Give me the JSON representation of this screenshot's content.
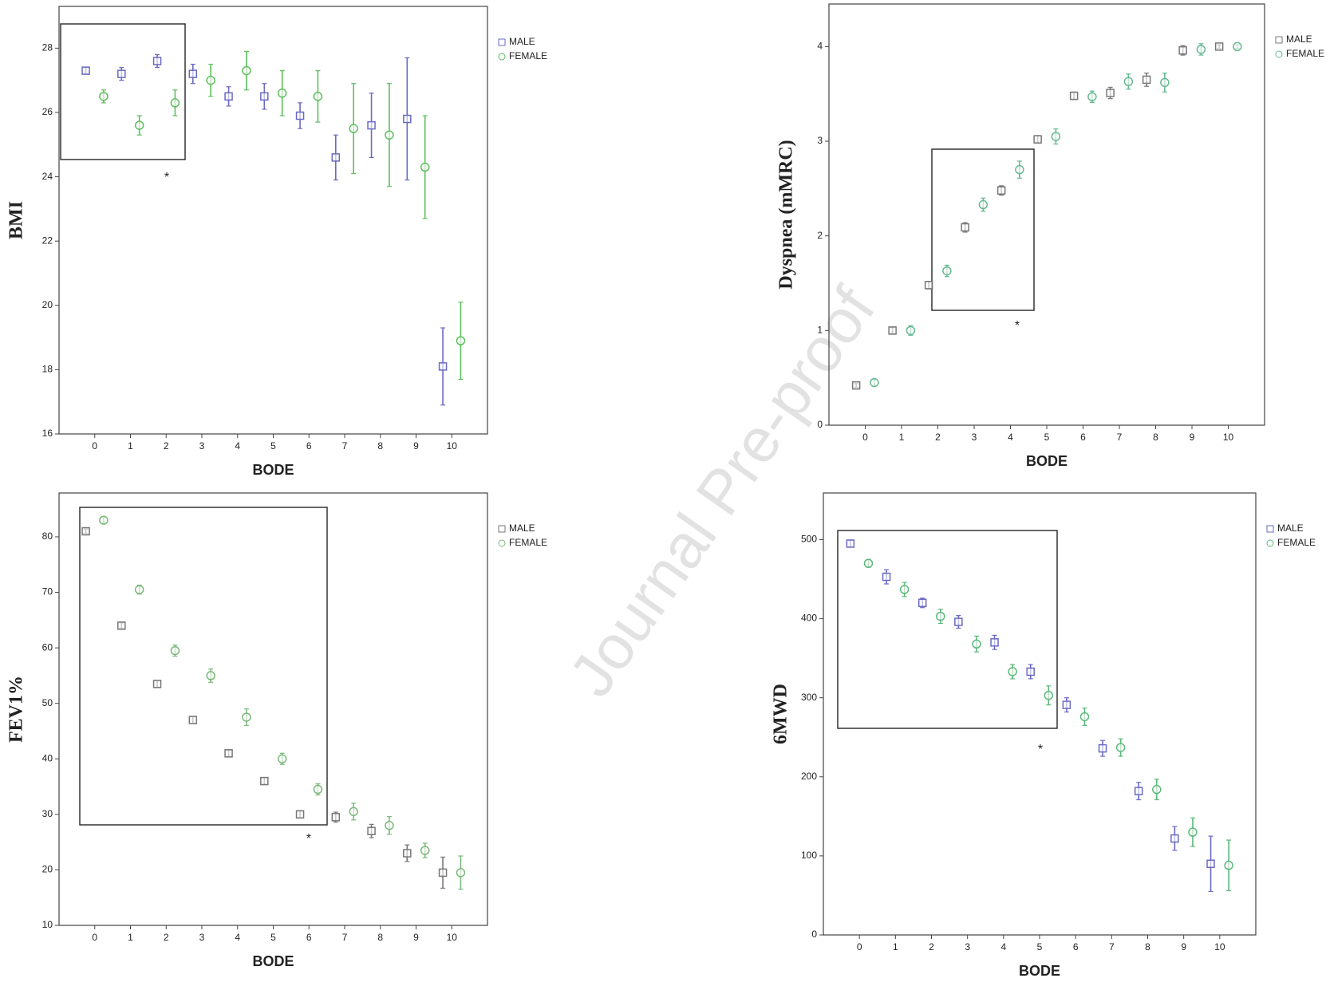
{
  "watermark": "Journal Pre-proof",
  "chart_data": [
    {
      "type": "errorbar",
      "x_label": "BODE",
      "y_label": "BMI",
      "annotation": "*",
      "categories": [
        "0",
        "1",
        "2",
        "3",
        "4",
        "5",
        "6",
        "7",
        "8",
        "9",
        "10"
      ],
      "ylim": [
        16,
        29.3
      ],
      "yticks": [
        16,
        18,
        20,
        22,
        24,
        26,
        28
      ],
      "series": [
        {
          "name": "MALE",
          "color": "#6a6ac4",
          "marker": "square",
          "values": [
            27.3,
            27.2,
            27.6,
            27.2,
            26.5,
            26.5,
            25.9,
            24.6,
            25.6,
            25.8,
            18.1
          ],
          "errors": [
            0.1,
            0.2,
            0.2,
            0.3,
            0.3,
            0.4,
            0.4,
            0.7,
            1.0,
            1.9,
            1.2
          ]
        },
        {
          "name": "FEMALE",
          "color": "#5cc05c",
          "marker": "circle",
          "values": [
            26.5,
            25.6,
            26.3,
            27.0,
            27.3,
            26.6,
            26.5,
            25.5,
            25.3,
            24.3,
            18.9
          ],
          "errors": [
            0.2,
            0.3,
            0.4,
            0.5,
            0.6,
            0.7,
            0.8,
            1.4,
            1.6,
            1.6,
            1.2
          ]
        }
      ]
    },
    {
      "type": "errorbar",
      "x_label": "BODE",
      "y_label": "Dyspnea (mMRC)",
      "annotation": "*",
      "categories": [
        "0",
        "1",
        "2",
        "3",
        "4",
        "5",
        "6",
        "7",
        "8",
        "9",
        "10"
      ],
      "ylim": [
        0,
        4.45
      ],
      "yticks": [
        0,
        1,
        2,
        3,
        4
      ],
      "series": [
        {
          "name": "MALE",
          "color": "#777777",
          "marker": "square",
          "values": [
            0.42,
            1.0,
            1.48,
            2.09,
            2.48,
            3.02,
            3.48,
            3.51,
            3.65,
            3.96,
            4.0
          ],
          "errors": [
            0.02,
            0.03,
            0.04,
            0.05,
            0.05,
            0.04,
            0.04,
            0.06,
            0.07,
            0.05,
            0.02
          ]
        },
        {
          "name": "FEMALE",
          "color": "#66b890",
          "marker": "circle",
          "values": [
            0.45,
            1.0,
            1.63,
            2.33,
            2.7,
            3.05,
            3.47,
            3.63,
            3.62,
            3.97,
            4.0
          ],
          "errors": [
            0.03,
            0.05,
            0.06,
            0.07,
            0.09,
            0.08,
            0.06,
            0.08,
            0.1,
            0.06,
            0.02
          ]
        }
      ]
    },
    {
      "type": "errorbar",
      "x_label": "BODE",
      "y_label": "FEV1%",
      "annotation": "*",
      "categories": [
        "0",
        "1",
        "2",
        "3",
        "4",
        "5",
        "6",
        "7",
        "8",
        "9",
        "10"
      ],
      "ylim": [
        10,
        87.9
      ],
      "yticks": [
        10,
        20,
        30,
        40,
        50,
        60,
        70,
        80
      ],
      "series": [
        {
          "name": "MALE",
          "color": "#777777",
          "marker": "square",
          "values": [
            81,
            64,
            53.5,
            47,
            41,
            36,
            30,
            29.5,
            27,
            23,
            19.5
          ],
          "errors": [
            0.4,
            0.5,
            0.6,
            0.6,
            0.6,
            0.6,
            0.6,
            0.9,
            1.2,
            1.5,
            2.8
          ]
        },
        {
          "name": "FEMALE",
          "color": "#7ab87a",
          "marker": "circle",
          "values": [
            83,
            70.5,
            59.5,
            55,
            47.5,
            40,
            34.5,
            30.5,
            28,
            23.5,
            19.5
          ],
          "errors": [
            0.5,
            0.8,
            1.0,
            1.2,
            1.5,
            1.0,
            1.0,
            1.5,
            1.6,
            1.3,
            3.0
          ]
        }
      ]
    },
    {
      "type": "errorbar",
      "x_label": "BODE",
      "y_label": "6MWD",
      "annotation": "*",
      "categories": [
        "0",
        "1",
        "2",
        "3",
        "4",
        "5",
        "6",
        "7",
        "8",
        "9",
        "10"
      ],
      "ylim": [
        0,
        559
      ],
      "yticks": [
        0,
        100,
        200,
        300,
        400,
        500
      ],
      "series": [
        {
          "name": "MALE",
          "color": "#6a6ac4",
          "marker": "square",
          "values": [
            495,
            453,
            420,
            396,
            370,
            333,
            291,
            236,
            182,
            122,
            90
          ],
          "errors": [
            4,
            9,
            6,
            8,
            9,
            9,
            9,
            10,
            11,
            15,
            35
          ]
        },
        {
          "name": "FEMALE",
          "color": "#5cb87a",
          "marker": "circle",
          "values": [
            470,
            437,
            403,
            368,
            333,
            303,
            276,
            237,
            184,
            130,
            88
          ],
          "errors": [
            5,
            9,
            9,
            10,
            9,
            12,
            11,
            11,
            13,
            18,
            32
          ]
        }
      ]
    }
  ]
}
